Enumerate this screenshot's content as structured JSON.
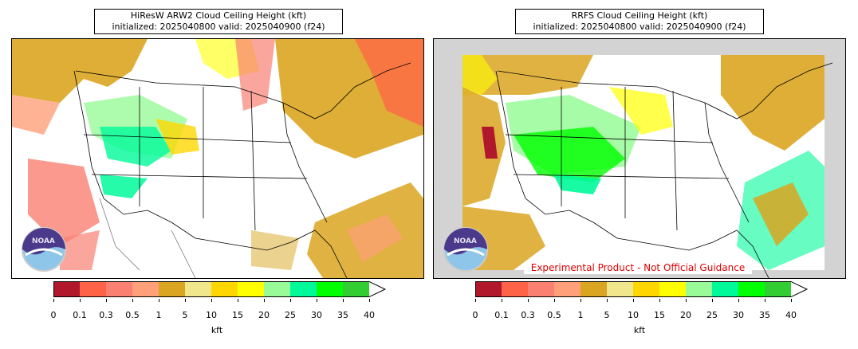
{
  "panels": [
    {
      "title_line1": "HiResW ARW2 Cloud Ceiling Height (kft)",
      "title_line2": "initialized: 2025040800 valid: 2025040900 (f24)",
      "logo_text": "NOAA"
    },
    {
      "title_line1": "RRFS Cloud Ceiling Height (kft)",
      "title_line2": "initialized: 2025040800 valid: 2025040900 (f24)",
      "logo_text": "NOAA",
      "watermark": "Experimental Product - Not Official Guidance"
    }
  ],
  "colorbar": {
    "unit": "kft",
    "ticks": [
      "0",
      "0.1",
      "0.3",
      "0.5",
      "1",
      "5",
      "10",
      "15",
      "20",
      "25",
      "30",
      "35",
      "40"
    ],
    "colors": [
      "#b2182b",
      "#ff6347",
      "#fa8072",
      "#ffa07a",
      "#daa520",
      "#f0e68c",
      "#ffd700",
      "#ffff00",
      "#98fb98",
      "#00fa9a",
      "#00ff00",
      "#32cd32"
    ],
    "extend": "max"
  },
  "colors": {
    "land": "#ffffff",
    "ocean_outside_domain": "#d3d3d3",
    "watermark_text": "#e00000"
  }
}
